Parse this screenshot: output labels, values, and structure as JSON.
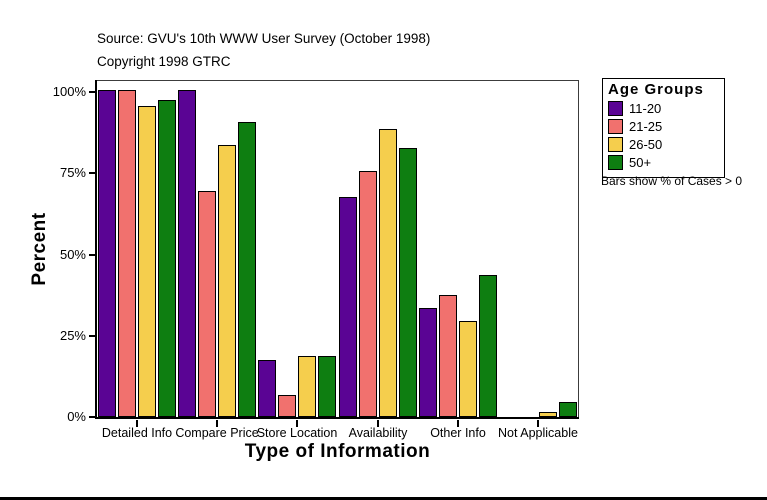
{
  "header": {
    "source": "Source: GVU's 10th WWW User Survey (October 1998)",
    "copyright": "Copyright 1998 GTRC"
  },
  "chart_data": {
    "type": "bar",
    "title": "",
    "xlabel": "Type of Information",
    "ylabel": "Percent",
    "categories": [
      "Detailed Info",
      "Compare Price",
      "Store Location",
      "Availability",
      "Other Info",
      "Not Applicable"
    ],
    "series": [
      {
        "name": "11-20",
        "color": "#5A0494",
        "values": [
          100,
          100,
          17,
          67,
          33,
          0
        ]
      },
      {
        "name": "21-25",
        "color": "#F1716E",
        "values": [
          100,
          69,
          6,
          75,
          37,
          0
        ]
      },
      {
        "name": "26-50",
        "color": "#F5CE4D",
        "values": [
          95,
          83,
          18,
          88,
          29,
          1
        ]
      },
      {
        "name": "50+",
        "color": "#0E7E11",
        "values": [
          97,
          90,
          18,
          82,
          43,
          4
        ]
      }
    ],
    "y_ticks": [
      {
        "label": "0%",
        "value": 0
      },
      {
        "label": "25%",
        "value": 25
      },
      {
        "label": "50%",
        "value": 50
      },
      {
        "label": "75%",
        "value": 75
      },
      {
        "label": "100%",
        "value": 100
      }
    ],
    "ylim": [
      0,
      100
    ],
    "grid": false,
    "legend_position": "right"
  },
  "legend": {
    "title": "Age Groups"
  },
  "note": "Bars show % of Cases > 0"
}
